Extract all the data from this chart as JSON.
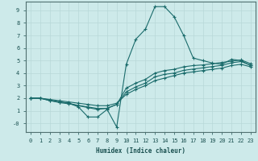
{
  "xlabel": "Humidex (Indice chaleur)",
  "bg_color": "#cdeaea",
  "grid_color": "#b8d8d8",
  "line_color": "#1a6b6b",
  "xlim": [
    -0.5,
    23.5
  ],
  "ylim": [
    -0.7,
    9.7
  ],
  "xticks": [
    0,
    1,
    2,
    3,
    4,
    5,
    6,
    7,
    8,
    9,
    10,
    11,
    12,
    13,
    14,
    15,
    16,
    17,
    18,
    19,
    20,
    21,
    22,
    23
  ],
  "yticks": [
    0,
    1,
    2,
    3,
    4,
    5,
    6,
    7,
    8,
    9
  ],
  "ytick_labels": [
    "-0",
    "1",
    "2",
    "3",
    "4",
    "5",
    "6",
    "7",
    "8",
    "9"
  ],
  "series": [
    {
      "x": [
        0,
        1,
        2,
        3,
        4,
        5,
        6,
        7,
        8,
        9,
        10,
        11,
        12,
        13,
        14,
        15,
        16,
        17,
        18,
        19,
        20,
        21,
        22,
        23
      ],
      "y": [
        2.0,
        2.0,
        1.8,
        1.7,
        1.6,
        1.3,
        0.5,
        0.5,
        1.1,
        -0.3,
        4.7,
        6.7,
        7.5,
        9.3,
        9.3,
        8.5,
        7.0,
        5.2,
        5.0,
        4.8,
        4.7,
        5.1,
        5.0,
        4.6
      ]
    },
    {
      "x": [
        0,
        1,
        2,
        3,
        4,
        5,
        6,
        7,
        8,
        9,
        10,
        11,
        12,
        13,
        14,
        15,
        16,
        17,
        18,
        19,
        20,
        21,
        22,
        23
      ],
      "y": [
        2.0,
        2.0,
        1.85,
        1.7,
        1.6,
        1.4,
        1.25,
        1.1,
        1.2,
        1.5,
        2.8,
        3.2,
        3.5,
        4.0,
        4.2,
        4.3,
        4.5,
        4.6,
        4.65,
        4.75,
        4.85,
        4.95,
        5.05,
        4.75
      ]
    },
    {
      "x": [
        0,
        1,
        2,
        3,
        4,
        5,
        6,
        7,
        8,
        9,
        10,
        11,
        12,
        13,
        14,
        15,
        16,
        17,
        18,
        19,
        20,
        21,
        22,
        23
      ],
      "y": [
        2.0,
        2.0,
        1.82,
        1.65,
        1.55,
        1.42,
        1.3,
        1.18,
        1.18,
        1.5,
        2.5,
        2.9,
        3.2,
        3.7,
        3.9,
        4.0,
        4.22,
        4.32,
        4.42,
        4.52,
        4.62,
        4.82,
        4.92,
        4.62
      ]
    },
    {
      "x": [
        0,
        1,
        2,
        3,
        4,
        5,
        6,
        7,
        8,
        9,
        10,
        11,
        12,
        13,
        14,
        15,
        16,
        17,
        18,
        19,
        20,
        21,
        22,
        23
      ],
      "y": [
        2.0,
        2.0,
        1.9,
        1.8,
        1.7,
        1.6,
        1.5,
        1.4,
        1.4,
        1.6,
        2.3,
        2.7,
        3.0,
        3.4,
        3.6,
        3.8,
        4.0,
        4.1,
        4.2,
        4.3,
        4.4,
        4.6,
        4.7,
        4.5
      ]
    }
  ]
}
